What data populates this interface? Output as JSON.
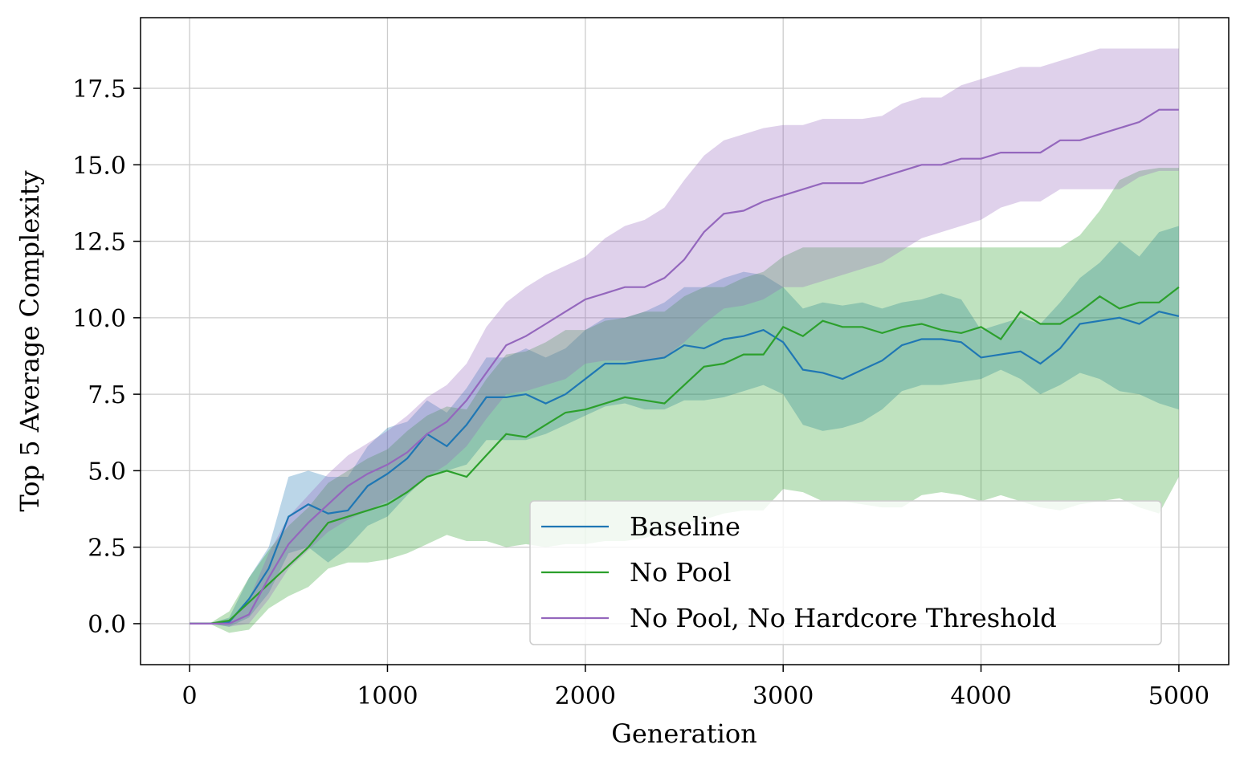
{
  "chart_data": {
    "type": "line",
    "xlabel": "Generation",
    "ylabel": "Top 5 Average Complexity",
    "x": [
      0,
      100,
      200,
      300,
      400,
      500,
      600,
      700,
      800,
      900,
      1000,
      1100,
      1200,
      1300,
      1400,
      1500,
      1600,
      1700,
      1800,
      1900,
      2000,
      2100,
      2200,
      2300,
      2400,
      2500,
      2600,
      2700,
      2800,
      2900,
      3000,
      3100,
      3200,
      3300,
      3400,
      3500,
      3600,
      3700,
      3800,
      3900,
      4000,
      4100,
      4200,
      4300,
      4400,
      4500,
      4600,
      4700,
      4800,
      4900,
      5000
    ],
    "series": [
      {
        "name": "Baseline",
        "color": "#1f77b4",
        "values": [
          0,
          0,
          0.05,
          0.8,
          1.8,
          3.5,
          3.9,
          3.6,
          3.7,
          4.5,
          4.9,
          5.4,
          6.2,
          5.8,
          6.5,
          7.4,
          7.4,
          7.5,
          7.2,
          7.5,
          8,
          8.5,
          8.5,
          8.6,
          8.7,
          9.1,
          9,
          9.3,
          9.4,
          9.6,
          9.2,
          8.3,
          8.2,
          8,
          8.3,
          8.6,
          9.1,
          9.3,
          9.3,
          9.2,
          8.7,
          8.8,
          8.9,
          8.5,
          9,
          9.8,
          9.9,
          10,
          9.8,
          10.2,
          10.05
        ],
        "lower": [
          0,
          0,
          -0.1,
          0.2,
          1,
          2.3,
          2.5,
          2,
          2.5,
          3.2,
          3.5,
          4.2,
          4.8,
          5,
          5.2,
          6,
          6,
          6,
          6.2,
          6.5,
          6.8,
          7.1,
          7.2,
          7,
          7,
          7.3,
          7.3,
          7.4,
          7.6,
          7.8,
          7.5,
          6.5,
          6.3,
          6.4,
          6.6,
          7,
          7.6,
          7.8,
          7.8,
          7.9,
          8,
          8.3,
          8,
          7.5,
          7.8,
          8.2,
          8,
          7.6,
          7.5,
          7.2,
          7
        ],
        "upper": [
          0,
          0,
          0.2,
          1.5,
          2.5,
          4.8,
          5,
          4.8,
          4.8,
          5.8,
          6.4,
          6.6,
          7.3,
          6.9,
          7.7,
          8.7,
          8.7,
          9,
          8.7,
          9,
          9.6,
          10,
          10,
          10.2,
          10.5,
          11,
          11,
          11.3,
          11.5,
          11.4,
          11,
          10.3,
          10.5,
          10.4,
          10.5,
          10.3,
          10.5,
          10.6,
          10.8,
          10.6,
          9.6,
          9.8,
          10,
          9.8,
          10.5,
          11.3,
          11.8,
          12.5,
          12,
          12.8,
          13
        ]
      },
      {
        "name": "No Pool",
        "color": "#2ca02c",
        "values": [
          0,
          0,
          0.1,
          0.7,
          1.3,
          1.9,
          2.5,
          3.3,
          3.5,
          3.7,
          3.9,
          4.3,
          4.8,
          5,
          4.8,
          5.5,
          6.2,
          6.1,
          6.5,
          6.9,
          7,
          7.2,
          7.4,
          7.3,
          7.2,
          7.8,
          8.4,
          8.5,
          8.8,
          8.8,
          9.7,
          9.4,
          9.9,
          9.7,
          9.7,
          9.5,
          9.7,
          9.8,
          9.6,
          9.5,
          9.7,
          9.3,
          10.2,
          9.8,
          9.8,
          10.2,
          10.7,
          10.3,
          10.5,
          10.5,
          11
        ],
        "lower": [
          0,
          0,
          -0.3,
          -0.2,
          0.5,
          0.9,
          1.2,
          1.8,
          2,
          2,
          2.1,
          2.3,
          2.6,
          2.9,
          2.7,
          2.7,
          2.5,
          2.6,
          2.5,
          2.6,
          2.6,
          2.7,
          2.7,
          2.8,
          3,
          3.3,
          3.4,
          3.6,
          3.7,
          3.7,
          4.4,
          4.3,
          4,
          4,
          3.9,
          3.8,
          3.8,
          4.2,
          4.3,
          4.2,
          4,
          4.2,
          4,
          3.8,
          3.7,
          3.9,
          4,
          4.1,
          3.8,
          3.6,
          4.8
        ],
        "upper": [
          0,
          0,
          0.4,
          1.5,
          2.4,
          3.2,
          3.8,
          4.6,
          5,
          5.4,
          5.7,
          6.3,
          6.8,
          7.1,
          7,
          8,
          8.8,
          8.9,
          9.2,
          9.6,
          9.6,
          9.9,
          10,
          10.2,
          10.2,
          10.7,
          11,
          11,
          11.3,
          11.5,
          12,
          12.3,
          12.3,
          12.3,
          12.3,
          12.3,
          12.3,
          12.3,
          12.3,
          12.3,
          12.3,
          12.3,
          12.3,
          12.3,
          12.3,
          12.7,
          13.5,
          14.5,
          14.8,
          14.9,
          14.9
        ]
      },
      {
        "name": "No Pool, No Hardcore Threshold",
        "color": "#9467bd",
        "values": [
          0,
          0,
          0,
          0.3,
          1.5,
          2.6,
          3.3,
          3.9,
          4.5,
          4.9,
          5.2,
          5.6,
          6.2,
          6.6,
          7.3,
          8.2,
          9.1,
          9.4,
          9.8,
          10.2,
          10.6,
          10.8,
          11,
          11,
          11.3,
          11.9,
          12.8,
          13.4,
          13.5,
          13.8,
          14,
          14.2,
          14.4,
          14.4,
          14.4,
          14.6,
          14.8,
          15,
          15,
          15.2,
          15.2,
          15.4,
          15.4,
          15.4,
          15.8,
          15.8,
          16,
          16.2,
          16.4,
          16.8,
          16.8
        ],
        "lower": [
          0,
          0,
          -0.1,
          0,
          0.8,
          1.8,
          2.4,
          3,
          3.4,
          3.7,
          4,
          4.3,
          4.8,
          5.2,
          5.8,
          6.7,
          7.5,
          7.6,
          7.8,
          8,
          8.5,
          8.6,
          8.6,
          8.6,
          8.7,
          9.2,
          9.8,
          10.3,
          10.4,
          10.6,
          11,
          11,
          11.2,
          11.4,
          11.6,
          11.8,
          12.2,
          12.6,
          12.8,
          13,
          13.2,
          13.6,
          13.8,
          13.8,
          14.2,
          14.2,
          14.2,
          14.2,
          14.6,
          14.8,
          14.8
        ],
        "upper": [
          0,
          0,
          0.1,
          0.8,
          2.3,
          3.5,
          4.2,
          4.9,
          5.5,
          5.9,
          6.3,
          6.8,
          7.4,
          7.8,
          8.5,
          9.7,
          10.5,
          11,
          11.4,
          11.7,
          12,
          12.6,
          13,
          13.2,
          13.6,
          14.5,
          15.3,
          15.8,
          16,
          16.2,
          16.3,
          16.3,
          16.5,
          16.5,
          16.5,
          16.6,
          17,
          17.2,
          17.2,
          17.6,
          17.8,
          18,
          18.2,
          18.2,
          18.4,
          18.6,
          18.8,
          18.8,
          18.8,
          18.8,
          18.8
        ]
      }
    ],
    "xlim": [
      -248,
      5252
    ],
    "ylim": [
      -1.34,
      19.81
    ],
    "xticks": [
      0,
      1000,
      2000,
      3000,
      4000,
      5000
    ],
    "yticks": [
      {
        "value": 0,
        "label": "0.0"
      },
      2.5,
      {
        "value": 5,
        "label": "5.0"
      },
      7.5,
      {
        "value": 10,
        "label": "10.0"
      },
      12.5,
      {
        "value": 15,
        "label": "15.0"
      },
      17.5
    ],
    "grid": true,
    "legend": "lower right"
  }
}
